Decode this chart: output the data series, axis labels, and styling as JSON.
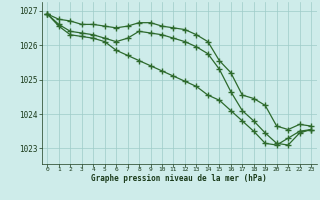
{
  "x": [
    0,
    1,
    2,
    3,
    4,
    5,
    6,
    7,
    8,
    9,
    10,
    11,
    12,
    13,
    14,
    15,
    16,
    17,
    18,
    19,
    20,
    21,
    22,
    23
  ],
  "line1": [
    1026.9,
    1026.75,
    1026.7,
    1026.6,
    1026.6,
    1026.55,
    1026.5,
    1026.55,
    1026.65,
    1026.65,
    1026.55,
    1026.5,
    1026.45,
    1026.3,
    1026.1,
    1025.55,
    1025.2,
    1024.55,
    1024.45,
    1024.25,
    1023.65,
    1023.55,
    1023.7,
    1023.65
  ],
  "line2": [
    1026.9,
    1026.6,
    1026.4,
    1026.35,
    1026.3,
    1026.2,
    1026.1,
    1026.2,
    1026.4,
    1026.35,
    1026.3,
    1026.2,
    1026.1,
    1025.95,
    1025.75,
    1025.3,
    1024.65,
    1024.1,
    1023.8,
    1023.45,
    1023.15,
    1023.1,
    1023.45,
    1023.55
  ],
  "line3": [
    1026.9,
    1026.55,
    1026.3,
    1026.25,
    1026.2,
    1026.1,
    1025.85,
    1025.7,
    1025.55,
    1025.4,
    1025.25,
    1025.1,
    1024.95,
    1024.8,
    1024.55,
    1024.4,
    1024.1,
    1023.8,
    1023.5,
    1023.15,
    1023.1,
    1023.3,
    1023.5,
    1023.55
  ],
  "ylim": [
    1022.55,
    1027.25
  ],
  "yticks": [
    1023,
    1024,
    1025,
    1026,
    1027
  ],
  "xticks": [
    0,
    1,
    2,
    3,
    4,
    5,
    6,
    7,
    8,
    9,
    10,
    11,
    12,
    13,
    14,
    15,
    16,
    17,
    18,
    19,
    20,
    21,
    22,
    23
  ],
  "line_color": "#2d6a2d",
  "bg_color": "#ceecea",
  "grid_color": "#9eccc8",
  "xlabel": "Graphe pression niveau de la mer (hPa)",
  "xlabel_color": "#1a3a1a",
  "tick_color": "#1a3a1a",
  "marker": "+",
  "marker_size": 4,
  "linewidth": 0.9
}
